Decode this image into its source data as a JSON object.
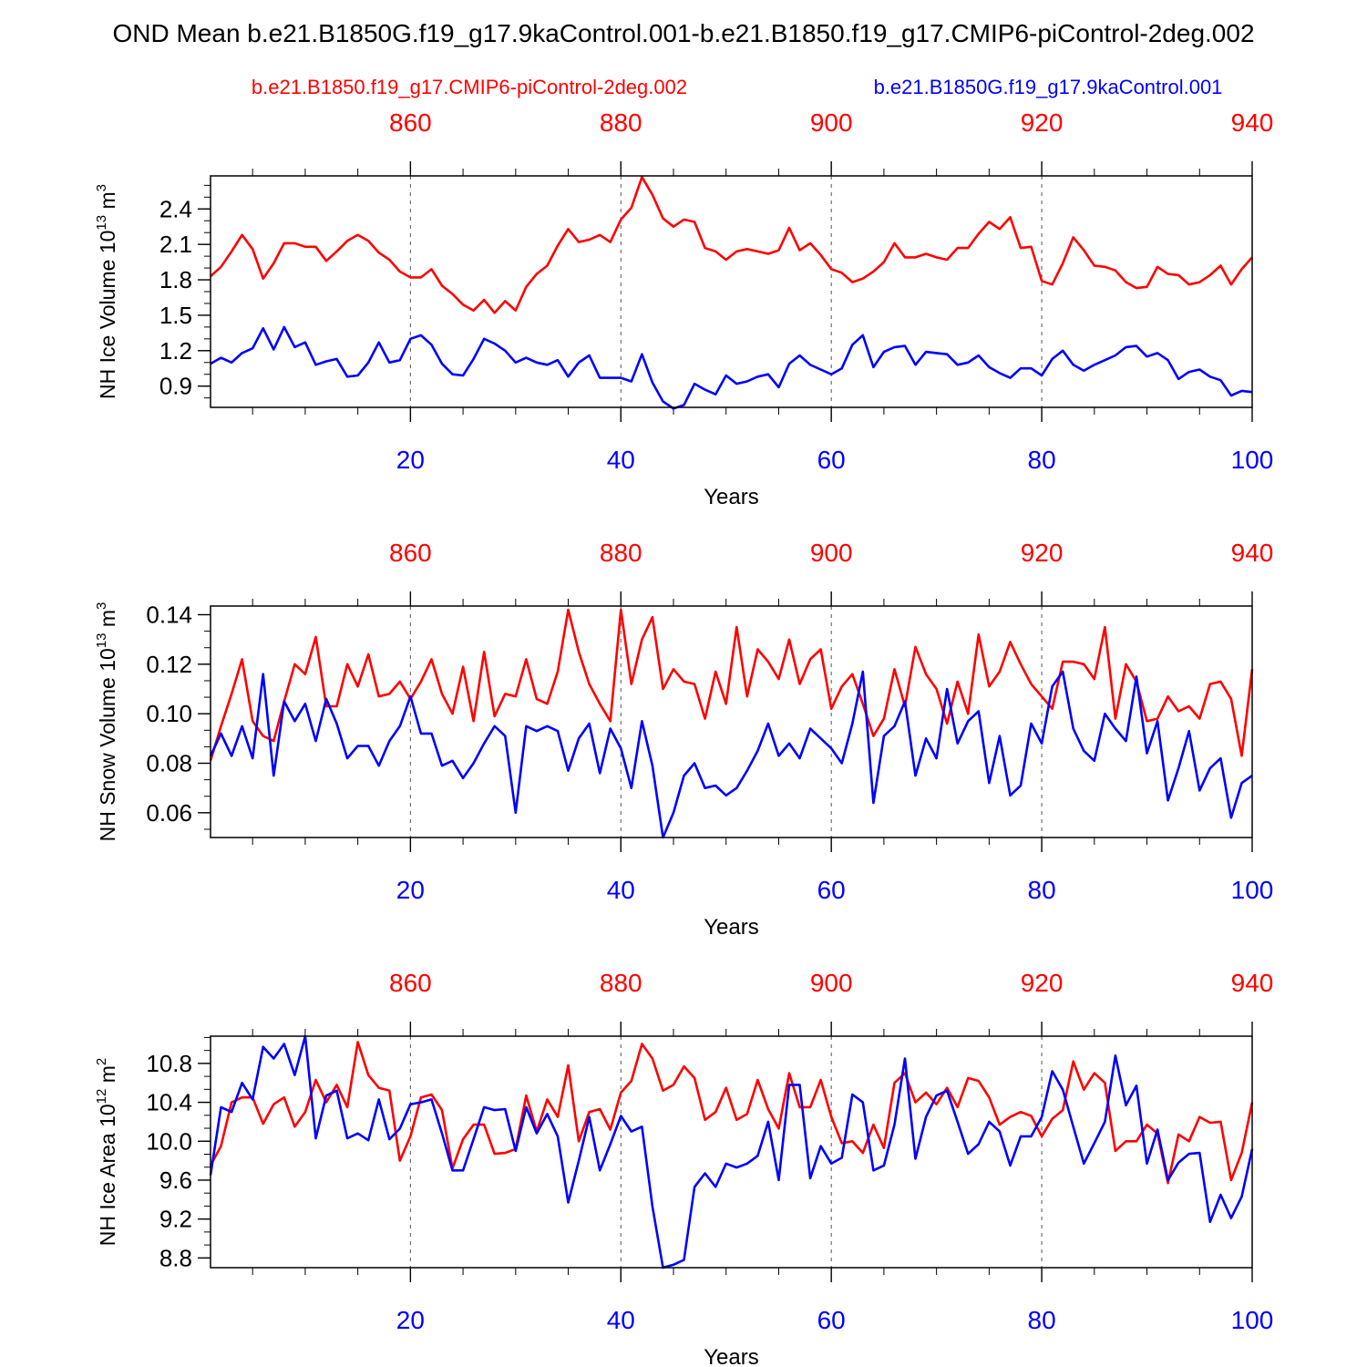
{
  "title": "OND Mean b.e21.B1850G.f19_g17.9kaControl.001-b.e21.B1850.f19_g17.CMIP6-piControl-2deg.002",
  "legend": {
    "red_label": "b.e21.B1850.f19_g17.CMIP6-piControl-2deg.002",
    "blue_label": "b.e21.B1850G.f19_g17.9kaControl.001"
  },
  "colors": {
    "red": "#ff0000",
    "blue": "#0000ff",
    "axis": "#000000",
    "grid": "#555555"
  },
  "chart_data": [
    {
      "type": "line",
      "ylabel": "NH Ice Volume 10",
      "ylabel_exp": "13",
      "ylabel_unit": " m",
      "ylabel_unit_exp": "3",
      "xlabel": "Years",
      "xlim": [
        1,
        100
      ],
      "ylim": [
        0.72,
        2.68
      ],
      "yticks": [
        "0.9",
        "1.2",
        "1.5",
        "1.8",
        "2.1",
        "2.4"
      ],
      "x_bottom_ticks": [
        "20",
        "40",
        "60",
        "80",
        "100"
      ],
      "x_top_ticks": [
        "860",
        "880",
        "900",
        "920",
        "940"
      ],
      "series": [
        {
          "name": "b.e21.B1850.f19_g17.CMIP6-piControl-2deg.002",
          "color": "red",
          "values": [
            1.83,
            1.91,
            2.04,
            2.18,
            2.06,
            1.81,
            1.94,
            2.11,
            2.11,
            2.08,
            2.08,
            1.96,
            2.04,
            2.13,
            2.18,
            2.13,
            2.03,
            1.97,
            1.87,
            1.82,
            1.82,
            1.89,
            1.75,
            1.68,
            1.59,
            1.54,
            1.63,
            1.52,
            1.62,
            1.54,
            1.74,
            1.85,
            1.92,
            2.09,
            2.23,
            2.12,
            2.14,
            2.18,
            2.12,
            2.31,
            2.41,
            2.67,
            2.52,
            2.32,
            2.25,
            2.31,
            2.29,
            2.07,
            2.04,
            1.97,
            2.04,
            2.06,
            2.04,
            2.02,
            2.05,
            2.24,
            2.05,
            2.11,
            2.01,
            1.89,
            1.86,
            1.78,
            1.81,
            1.87,
            1.95,
            2.11,
            1.99,
            1.99,
            2.02,
            1.99,
            1.97,
            2.07,
            2.07,
            2.19,
            2.29,
            2.23,
            2.33,
            2.07,
            2.08,
            1.79,
            1.76,
            1.94,
            2.16,
            2.05,
            1.92,
            1.91,
            1.88,
            1.78,
            1.73,
            1.74,
            1.91,
            1.85,
            1.84,
            1.76,
            1.78,
            1.84,
            1.92,
            1.76,
            1.89,
            1.99
          ]
        },
        {
          "name": "b.e21.B1850G.f19_g17.9kaControl.001",
          "color": "blue",
          "values": [
            1.09,
            1.14,
            1.1,
            1.18,
            1.22,
            1.39,
            1.21,
            1.4,
            1.23,
            1.27,
            1.08,
            1.11,
            1.13,
            0.98,
            0.99,
            1.1,
            1.27,
            1.1,
            1.12,
            1.3,
            1.33,
            1.25,
            1.09,
            1.0,
            0.99,
            1.13,
            1.3,
            1.26,
            1.2,
            1.1,
            1.14,
            1.1,
            1.08,
            1.12,
            0.98,
            1.1,
            1.16,
            0.97,
            0.97,
            0.97,
            0.94,
            1.17,
            0.93,
            0.77,
            0.71,
            0.74,
            0.92,
            0.87,
            0.83,
            0.99,
            0.92,
            0.94,
            0.98,
            1.0,
            0.89,
            1.09,
            1.16,
            1.08,
            1.04,
            1.0,
            1.05,
            1.25,
            1.33,
            1.06,
            1.19,
            1.23,
            1.24,
            1.08,
            1.19,
            1.18,
            1.17,
            1.08,
            1.1,
            1.16,
            1.06,
            1.01,
            0.97,
            1.05,
            1.05,
            0.99,
            1.13,
            1.2,
            1.08,
            1.03,
            1.08,
            1.12,
            1.16,
            1.23,
            1.24,
            1.15,
            1.18,
            1.12,
            0.96,
            1.02,
            1.04,
            0.98,
            0.95,
            0.82,
            0.86,
            0.85
          ]
        }
      ]
    },
    {
      "type": "line",
      "ylabel": "NH Snow Volume 10",
      "ylabel_exp": "13",
      "ylabel_unit": " m",
      "ylabel_unit_exp": "3",
      "xlabel": "Years",
      "xlim": [
        1,
        100
      ],
      "ylim": [
        0.05,
        0.1435
      ],
      "yticks": [
        "0.06",
        "0.08",
        "0.10",
        "0.12",
        "0.14"
      ],
      "x_bottom_ticks": [
        "20",
        "40",
        "60",
        "80",
        "100"
      ],
      "x_top_ticks": [
        "860",
        "880",
        "900",
        "920",
        "940"
      ],
      "series": [
        {
          "name": "b.e21.B1850.f19_g17.CMIP6-piControl-2deg.002",
          "color": "red",
          "values": [
            0.081,
            0.095,
            0.108,
            0.122,
            0.097,
            0.091,
            0.089,
            0.105,
            0.12,
            0.116,
            0.131,
            0.103,
            0.103,
            0.12,
            0.111,
            0.124,
            0.107,
            0.108,
            0.113,
            0.106,
            0.113,
            0.122,
            0.108,
            0.1,
            0.119,
            0.097,
            0.125,
            0.099,
            0.108,
            0.107,
            0.122,
            0.106,
            0.104,
            0.117,
            0.142,
            0.125,
            0.112,
            0.104,
            0.097,
            0.142,
            0.112,
            0.13,
            0.139,
            0.11,
            0.118,
            0.113,
            0.112,
            0.098,
            0.117,
            0.104,
            0.135,
            0.107,
            0.126,
            0.121,
            0.114,
            0.13,
            0.112,
            0.122,
            0.126,
            0.102,
            0.111,
            0.116,
            0.104,
            0.091,
            0.098,
            0.118,
            0.103,
            0.127,
            0.116,
            0.11,
            0.096,
            0.113,
            0.1,
            0.132,
            0.111,
            0.117,
            0.129,
            0.12,
            0.112,
            0.107,
            0.102,
            0.121,
            0.121,
            0.12,
            0.114,
            0.135,
            0.098,
            0.12,
            0.113,
            0.097,
            0.098,
            0.107,
            0.101,
            0.103,
            0.098,
            0.112,
            0.113,
            0.106,
            0.083,
            0.118
          ]
        },
        {
          "name": "b.e21.B1850G.f19_g17.9kaControl.001",
          "color": "blue",
          "values": [
            0.083,
            0.092,
            0.083,
            0.095,
            0.082,
            0.116,
            0.075,
            0.105,
            0.097,
            0.104,
            0.089,
            0.106,
            0.096,
            0.082,
            0.087,
            0.087,
            0.079,
            0.089,
            0.095,
            0.107,
            0.092,
            0.092,
            0.079,
            0.081,
            0.074,
            0.08,
            0.088,
            0.095,
            0.091,
            0.06,
            0.095,
            0.093,
            0.095,
            0.093,
            0.077,
            0.09,
            0.096,
            0.076,
            0.094,
            0.086,
            0.07,
            0.097,
            0.079,
            0.05,
            0.06,
            0.075,
            0.08,
            0.07,
            0.071,
            0.067,
            0.07,
            0.077,
            0.085,
            0.096,
            0.083,
            0.088,
            0.082,
            0.094,
            0.09,
            0.086,
            0.08,
            0.096,
            0.117,
            0.064,
            0.091,
            0.095,
            0.105,
            0.075,
            0.09,
            0.082,
            0.11,
            0.088,
            0.097,
            0.101,
            0.072,
            0.091,
            0.067,
            0.071,
            0.096,
            0.088,
            0.111,
            0.117,
            0.094,
            0.085,
            0.081,
            0.1,
            0.094,
            0.089,
            0.115,
            0.084,
            0.097,
            0.065,
            0.078,
            0.093,
            0.069,
            0.078,
            0.082,
            0.058,
            0.072,
            0.075
          ]
        }
      ]
    },
    {
      "type": "line",
      "ylabel": "NH Ice Area 10",
      "ylabel_exp": "12",
      "ylabel_unit": " m",
      "ylabel_unit_exp": "2",
      "xlabel": "Years",
      "xlim": [
        1,
        100
      ],
      "ylim": [
        8.7,
        11.08
      ],
      "yticks": [
        "8.8",
        "9.2",
        "9.6",
        "10.0",
        "10.4",
        "10.8"
      ],
      "x_bottom_ticks": [
        "20",
        "40",
        "60",
        "80",
        "100"
      ],
      "x_top_ticks": [
        "860",
        "880",
        "900",
        "920",
        "940"
      ],
      "series": [
        {
          "name": "b.e21.B1850.f19_g17.CMIP6-piControl-2deg.002",
          "color": "red",
          "values": [
            9.75,
            9.95,
            10.4,
            10.45,
            10.45,
            10.18,
            10.38,
            10.45,
            10.15,
            10.3,
            10.63,
            10.4,
            10.58,
            10.35,
            11.02,
            10.68,
            10.55,
            10.52,
            9.8,
            10.05,
            10.45,
            10.48,
            10.32,
            9.72,
            10.02,
            10.17,
            10.17,
            9.87,
            9.88,
            9.92,
            10.47,
            10.1,
            10.43,
            10.25,
            10.78,
            10.0,
            10.3,
            10.33,
            10.12,
            10.5,
            10.62,
            11.0,
            10.85,
            10.52,
            10.58,
            10.77,
            10.65,
            10.22,
            10.3,
            10.55,
            10.22,
            10.28,
            10.63,
            10.33,
            10.13,
            10.7,
            10.35,
            10.35,
            10.63,
            10.25,
            9.98,
            10.0,
            9.88,
            10.17,
            9.93,
            10.6,
            10.7,
            10.4,
            10.5,
            10.38,
            10.55,
            10.35,
            10.65,
            10.62,
            10.45,
            10.17,
            10.25,
            10.3,
            10.26,
            10.05,
            10.23,
            10.32,
            10.82,
            10.53,
            10.7,
            10.6,
            9.9,
            10.0,
            10.0,
            10.17,
            10.08,
            9.57,
            10.07,
            10.0,
            10.25,
            10.19,
            10.2,
            9.6,
            9.88,
            10.4
          ]
        },
        {
          "name": "b.e21.B1850G.f19_g17.9kaControl.001",
          "color": "blue",
          "values": [
            9.65,
            10.35,
            10.3,
            10.6,
            10.43,
            10.97,
            10.85,
            11.0,
            10.68,
            11.08,
            10.03,
            10.47,
            10.52,
            10.03,
            10.08,
            10.01,
            10.43,
            10.02,
            10.13,
            10.38,
            10.4,
            10.43,
            10.08,
            9.7,
            9.7,
            10.02,
            10.35,
            10.32,
            10.33,
            9.9,
            10.35,
            10.08,
            10.28,
            10.05,
            9.37,
            9.8,
            10.25,
            9.7,
            9.97,
            10.26,
            10.1,
            10.15,
            9.33,
            8.7,
            8.73,
            8.78,
            9.53,
            9.67,
            9.53,
            9.77,
            9.73,
            9.77,
            9.85,
            10.2,
            9.6,
            10.58,
            10.58,
            9.62,
            9.95,
            9.77,
            9.83,
            10.48,
            10.4,
            9.7,
            9.75,
            10.17,
            10.85,
            9.82,
            10.25,
            10.47,
            10.52,
            10.2,
            9.87,
            9.97,
            10.2,
            10.1,
            9.75,
            10.05,
            10.05,
            10.25,
            10.72,
            10.53,
            10.15,
            9.77,
            9.98,
            10.2,
            10.88,
            10.37,
            10.57,
            9.77,
            10.12,
            9.6,
            9.78,
            9.87,
            9.88,
            9.17,
            9.45,
            9.21,
            9.43,
            9.92
          ]
        }
      ]
    }
  ]
}
